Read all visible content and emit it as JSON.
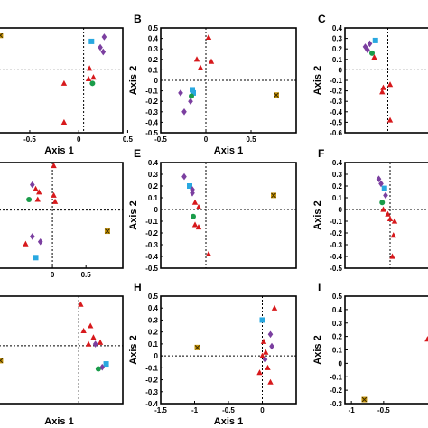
{
  "colors": {
    "triangle": "#d7191c",
    "diamond": "#7b3fa0",
    "square": "#29a8e0",
    "circle": "#1a9c4a",
    "cross": "#c8960a"
  },
  "chart_data": [
    {
      "type": "scatter",
      "panel_label": "",
      "xlabel": "Axis 1",
      "ylabel": "",
      "xlim": [
        -0.85,
        0.45
      ],
      "ylim": [
        -0.42,
        0.28
      ],
      "xticks": [
        -0.5,
        0,
        0.5
      ],
      "xtick_labels": [
        "-0.5",
        "0",
        "0.5"
      ],
      "yticks": [],
      "ytick_labels": [],
      "zero_lines": {
        "x": 0.05,
        "y": 0.0
      },
      "points": [
        {
          "x": -0.8,
          "y": 0.23,
          "shape": "cross"
        },
        {
          "x": 0.13,
          "y": 0.19,
          "shape": "square"
        },
        {
          "x": 0.26,
          "y": 0.22,
          "shape": "diamond"
        },
        {
          "x": 0.22,
          "y": 0.15,
          "shape": "diamond"
        },
        {
          "x": 0.25,
          "y": 0.12,
          "shape": "diamond"
        },
        {
          "x": 0.11,
          "y": 0.01,
          "shape": "triangle"
        },
        {
          "x": 0.15,
          "y": -0.05,
          "shape": "triangle"
        },
        {
          "x": 0.1,
          "y": -0.06,
          "shape": "triangle"
        },
        {
          "x": 0.14,
          "y": -0.09,
          "shape": "circle"
        },
        {
          "x": -0.15,
          "y": -0.09,
          "shape": "triangle"
        },
        {
          "x": -0.15,
          "y": -0.35,
          "shape": "triangle"
        }
      ]
    },
    {
      "type": "scatter",
      "panel_label": "B",
      "xlabel": "Axis 1",
      "ylabel": "Axis 2",
      "xlim": [
        -0.5,
        1.0
      ],
      "ylim": [
        -0.5,
        0.5
      ],
      "xticks": [
        -0.5,
        0,
        0.5
      ],
      "xtick_labels": [
        "-0.5",
        "0",
        "0.5"
      ],
      "yticks": [
        -0.5,
        -0.4,
        -0.3,
        -0.2,
        -0.1,
        0,
        0.1,
        0.2,
        0.3,
        0.4,
        0.5
      ],
      "ytick_labels": [
        "-0.5",
        "-0.4",
        "-0.3",
        "-0.2",
        "-0.1",
        "0",
        "0.1",
        "0.2",
        "0.3",
        "0.4",
        "0.5"
      ],
      "zero_lines": {
        "x": 0.0,
        "y": 0.0
      },
      "points": [
        {
          "x": 0.03,
          "y": 0.41,
          "shape": "triangle"
        },
        {
          "x": -0.1,
          "y": 0.2,
          "shape": "triangle"
        },
        {
          "x": 0.06,
          "y": 0.18,
          "shape": "triangle"
        },
        {
          "x": -0.06,
          "y": 0.12,
          "shape": "triangle"
        },
        {
          "x": -0.15,
          "y": -0.09,
          "shape": "square"
        },
        {
          "x": -0.14,
          "y": -0.12,
          "shape": "square"
        },
        {
          "x": -0.16,
          "y": -0.15,
          "shape": "circle"
        },
        {
          "x": -0.28,
          "y": -0.12,
          "shape": "diamond"
        },
        {
          "x": -0.17,
          "y": -0.2,
          "shape": "diamond"
        },
        {
          "x": -0.24,
          "y": -0.3,
          "shape": "diamond"
        },
        {
          "x": 0.78,
          "y": -0.14,
          "shape": "cross"
        }
      ]
    },
    {
      "type": "scatter",
      "panel_label": "C",
      "xlabel": "",
      "ylabel": "Axis 2",
      "xlim": [
        -0.3,
        0.5
      ],
      "ylim": [
        -0.6,
        0.4
      ],
      "xticks": [],
      "xtick_labels": [],
      "yticks": [
        -0.6,
        -0.5,
        -0.4,
        -0.3,
        -0.2,
        -0.1,
        0,
        0.1,
        0.2,
        0.3,
        0.4
      ],
      "ytick_labels": [
        "-0.6",
        "-0.5",
        "-0.4",
        "-0.3",
        "-0.2",
        "-0.1",
        "0",
        "0.1",
        "0.2",
        "0.3",
        "0.4"
      ],
      "zero_lines": {
        "x": 0.08,
        "y": 0.0
      },
      "points": [
        {
          "x": -0.03,
          "y": 0.28,
          "shape": "square"
        },
        {
          "x": -0.12,
          "y": 0.22,
          "shape": "diamond"
        },
        {
          "x": -0.08,
          "y": 0.25,
          "shape": "diamond"
        },
        {
          "x": -0.1,
          "y": 0.19,
          "shape": "diamond"
        },
        {
          "x": -0.06,
          "y": 0.16,
          "shape": "circle"
        },
        {
          "x": -0.04,
          "y": 0.12,
          "shape": "triangle"
        },
        {
          "x": 0.1,
          "y": -0.14,
          "shape": "triangle"
        },
        {
          "x": 0.04,
          "y": -0.17,
          "shape": "triangle"
        },
        {
          "x": 0.03,
          "y": -0.21,
          "shape": "triangle"
        },
        {
          "x": 0.1,
          "y": -0.48,
          "shape": "triangle"
        }
      ]
    },
    {
      "type": "scatter",
      "panel_label": "",
      "xlabel": "",
      "ylabel": "",
      "xlim": [
        -0.85,
        1.05
      ],
      "ylim": [
        -0.55,
        0.45
      ],
      "xticks": [
        0,
        0.5
      ],
      "xtick_labels": [
        "0",
        "0.5"
      ],
      "yticks": [],
      "ytick_labels": [],
      "zero_lines": {
        "x": 0.0,
        "y": 0.0
      },
      "points": [
        {
          "x": 0.02,
          "y": 0.42,
          "shape": "triangle"
        },
        {
          "x": -0.3,
          "y": 0.24,
          "shape": "diamond"
        },
        {
          "x": -0.25,
          "y": 0.2,
          "shape": "triangle"
        },
        {
          "x": -0.2,
          "y": 0.17,
          "shape": "triangle"
        },
        {
          "x": 0.02,
          "y": 0.14,
          "shape": "triangle"
        },
        {
          "x": -0.35,
          "y": 0.1,
          "shape": "circle"
        },
        {
          "x": -0.22,
          "y": 0.1,
          "shape": "triangle"
        },
        {
          "x": 0.04,
          "y": 0.08,
          "shape": "triangle"
        },
        {
          "x": -0.3,
          "y": -0.25,
          "shape": "diamond"
        },
        {
          "x": -0.18,
          "y": -0.3,
          "shape": "diamond"
        },
        {
          "x": -0.4,
          "y": -0.32,
          "shape": "triangle"
        },
        {
          "x": -0.25,
          "y": -0.45,
          "shape": "square"
        },
        {
          "x": 0.82,
          "y": -0.2,
          "shape": "cross"
        }
      ]
    },
    {
      "type": "scatter",
      "panel_label": "E",
      "xlabel": "",
      "ylabel": "Axis 2",
      "xlim": [
        -0.5,
        1.0
      ],
      "ylim": [
        -0.5,
        0.4
      ],
      "xticks": [],
      "xtick_labels": [],
      "yticks": [
        -0.5,
        -0.4,
        -0.3,
        -0.2,
        -0.1,
        0,
        0.1,
        0.2,
        0.3,
        0.4
      ],
      "ytick_labels": [
        "-0.5",
        "-0.4",
        "-0.3",
        "-0.2",
        "-0.1",
        "0",
        "0.1",
        "0.2",
        "0.3",
        "0.4"
      ],
      "zero_lines": {
        "x": 0.0,
        "y": 0.0
      },
      "points": [
        {
          "x": -0.24,
          "y": 0.28,
          "shape": "diamond"
        },
        {
          "x": -0.18,
          "y": 0.2,
          "shape": "square"
        },
        {
          "x": -0.15,
          "y": 0.17,
          "shape": "diamond"
        },
        {
          "x": -0.15,
          "y": 0.14,
          "shape": "diamond"
        },
        {
          "x": -0.12,
          "y": 0.06,
          "shape": "triangle"
        },
        {
          "x": -0.08,
          "y": 0.02,
          "shape": "triangle"
        },
        {
          "x": -0.14,
          "y": -0.06,
          "shape": "circle"
        },
        {
          "x": -0.12,
          "y": -0.13,
          "shape": "triangle"
        },
        {
          "x": -0.08,
          "y": -0.15,
          "shape": "triangle"
        },
        {
          "x": 0.03,
          "y": -0.38,
          "shape": "triangle"
        },
        {
          "x": 0.75,
          "y": 0.12,
          "shape": "cross"
        }
      ]
    },
    {
      "type": "scatter",
      "panel_label": "F",
      "xlabel": "",
      "ylabel": "Axis 2",
      "xlim": [
        -0.4,
        0.4
      ],
      "ylim": [
        -0.5,
        0.4
      ],
      "xticks": [],
      "xtick_labels": [],
      "yticks": [
        -0.5,
        -0.4,
        -0.3,
        -0.2,
        -0.1,
        0,
        0.1,
        0.2,
        0.3,
        0.4
      ],
      "ytick_labels": [
        "-0.5",
        "-0.4",
        "-0.3",
        "-0.2",
        "-0.1",
        "0",
        "0.1",
        "0.2",
        "0.3",
        "0.4"
      ],
      "zero_lines": {
        "x": 0.0,
        "y": 0.0
      },
      "points": [
        {
          "x": -0.1,
          "y": 0.26,
          "shape": "diamond"
        },
        {
          "x": -0.08,
          "y": 0.22,
          "shape": "diamond"
        },
        {
          "x": -0.05,
          "y": 0.18,
          "shape": "square"
        },
        {
          "x": -0.04,
          "y": 0.12,
          "shape": "diamond"
        },
        {
          "x": -0.07,
          "y": 0.06,
          "shape": "circle"
        },
        {
          "x": -0.06,
          "y": 0.0,
          "shape": "triangle"
        },
        {
          "x": -0.02,
          "y": -0.04,
          "shape": "triangle"
        },
        {
          "x": 0.0,
          "y": -0.08,
          "shape": "triangle"
        },
        {
          "x": 0.04,
          "y": -0.1,
          "shape": "triangle"
        },
        {
          "x": 0.03,
          "y": -0.22,
          "shape": "triangle"
        },
        {
          "x": 0.02,
          "y": -0.4,
          "shape": "triangle"
        }
      ]
    },
    {
      "type": "scatter",
      "panel_label": "",
      "xlabel": "Axis 1",
      "ylabel": "",
      "xlim": [
        -0.85,
        0.45
      ],
      "ylim": [
        -0.35,
        0.3
      ],
      "xticks": [],
      "xtick_labels": [],
      "yticks": [],
      "ytick_labels": [],
      "zero_lines": {
        "x": 0.0,
        "y": 0.0
      },
      "points": [
        {
          "x": 0.02,
          "y": 0.25,
          "shape": "triangle"
        },
        {
          "x": 0.12,
          "y": 0.12,
          "shape": "triangle"
        },
        {
          "x": 0.05,
          "y": 0.09,
          "shape": "triangle"
        },
        {
          "x": 0.15,
          "y": 0.05,
          "shape": "triangle"
        },
        {
          "x": 0.22,
          "y": 0.02,
          "shape": "triangle"
        },
        {
          "x": 0.1,
          "y": 0.01,
          "shape": "triangle"
        },
        {
          "x": 0.17,
          "y": 0.01,
          "shape": "diamond"
        },
        {
          "x": 0.28,
          "y": -0.11,
          "shape": "square"
        },
        {
          "x": 0.24,
          "y": -0.13,
          "shape": "diamond"
        },
        {
          "x": 0.2,
          "y": -0.14,
          "shape": "circle"
        },
        {
          "x": -0.8,
          "y": -0.09,
          "shape": "cross"
        }
      ]
    },
    {
      "type": "scatter",
      "panel_label": "H",
      "xlabel": "Axis 1",
      "ylabel": "Axis 2",
      "xlim": [
        -1.5,
        0.5
      ],
      "ylim": [
        -0.4,
        0.5
      ],
      "xticks": [
        -1.5,
        -1,
        -0.5,
        0
      ],
      "xtick_labels": [
        "-1.5",
        "-1",
        "-0.5",
        "0"
      ],
      "yticks": [
        -0.4,
        -0.3,
        -0.2,
        -0.1,
        0,
        0.1,
        0.2,
        0.3,
        0.4,
        0.5
      ],
      "ytick_labels": [
        "-0.4",
        "-0.3",
        "-0.2",
        "-0.1",
        "0",
        "0.1",
        "0.2",
        "0.3",
        "0.4",
        "0.5"
      ],
      "zero_lines": {
        "x": 0.0,
        "y": 0.0
      },
      "points": [
        {
          "x": 0.18,
          "y": 0.4,
          "shape": "triangle"
        },
        {
          "x": 0.0,
          "y": 0.3,
          "shape": "square"
        },
        {
          "x": 0.12,
          "y": 0.18,
          "shape": "diamond"
        },
        {
          "x": 0.02,
          "y": 0.12,
          "shape": "triangle"
        },
        {
          "x": 0.14,
          "y": 0.08,
          "shape": "diamond"
        },
        {
          "x": 0.05,
          "y": 0.03,
          "shape": "triangle"
        },
        {
          "x": 0.0,
          "y": 0.0,
          "shape": "triangle"
        },
        {
          "x": 0.04,
          "y": -0.03,
          "shape": "diamond"
        },
        {
          "x": 0.08,
          "y": -0.1,
          "shape": "triangle"
        },
        {
          "x": -0.04,
          "y": -0.14,
          "shape": "triangle"
        },
        {
          "x": 0.12,
          "y": -0.22,
          "shape": "triangle"
        },
        {
          "x": -0.96,
          "y": 0.07,
          "shape": "cross"
        }
      ]
    },
    {
      "type": "scatter",
      "panel_label": "I",
      "xlabel": "",
      "ylabel": "Axis 2",
      "xlim": [
        -1.1,
        0.3
      ],
      "ylim": [
        -0.3,
        0.5
      ],
      "xticks": [
        -1,
        -0.5
      ],
      "xtick_labels": [
        "-1",
        "-0.5"
      ],
      "yticks": [
        -0.3,
        -0.2,
        -0.1,
        0,
        0.1,
        0.2,
        0.3,
        0.4,
        0.5
      ],
      "ytick_labels": [
        "-0.3",
        "-0.2",
        "-0.1",
        "0",
        "0.1",
        "0.2",
        "0.3",
        "0.4",
        "0.5"
      ],
      "zero_lines": null,
      "points": [
        {
          "x": 0.18,
          "y": 0.18,
          "shape": "triangle"
        },
        {
          "x": -0.8,
          "y": -0.27,
          "shape": "cross"
        }
      ]
    }
  ]
}
